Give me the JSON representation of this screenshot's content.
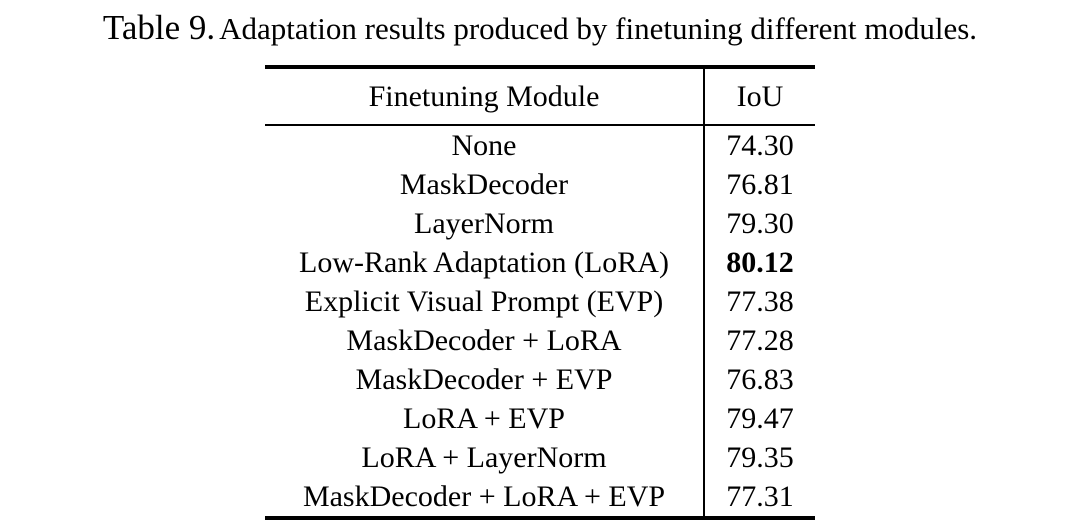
{
  "title": {
    "label": "Table 9.",
    "caption": "Adaptation results produced by finetuning different modules."
  },
  "table": {
    "headers": {
      "module": "Finetuning Module",
      "iou": "IoU"
    },
    "rows": [
      {
        "module": "None",
        "iou": "74.30",
        "bold": false
      },
      {
        "module": "MaskDecoder",
        "iou": "76.81",
        "bold": false
      },
      {
        "module": "LayerNorm",
        "iou": "79.30",
        "bold": false
      },
      {
        "module": "Low-Rank Adaptation (LoRA)",
        "iou": "80.12",
        "bold": true
      },
      {
        "module": "Explicit Visual Prompt (EVP)",
        "iou": "77.38",
        "bold": false
      },
      {
        "module": "MaskDecoder + LoRA",
        "iou": "77.28",
        "bold": false
      },
      {
        "module": "MaskDecoder + EVP",
        "iou": "76.83",
        "bold": false
      },
      {
        "module": "LoRA + EVP",
        "iou": "79.47",
        "bold": false
      },
      {
        "module": "LoRA + LayerNorm",
        "iou": "79.35",
        "bold": false
      },
      {
        "module": "MaskDecoder + LoRA + EVP",
        "iou": "77.31",
        "bold": false
      }
    ],
    "colors": {
      "text": "#000000",
      "background": "#ffffff",
      "rule": "#000000"
    }
  }
}
